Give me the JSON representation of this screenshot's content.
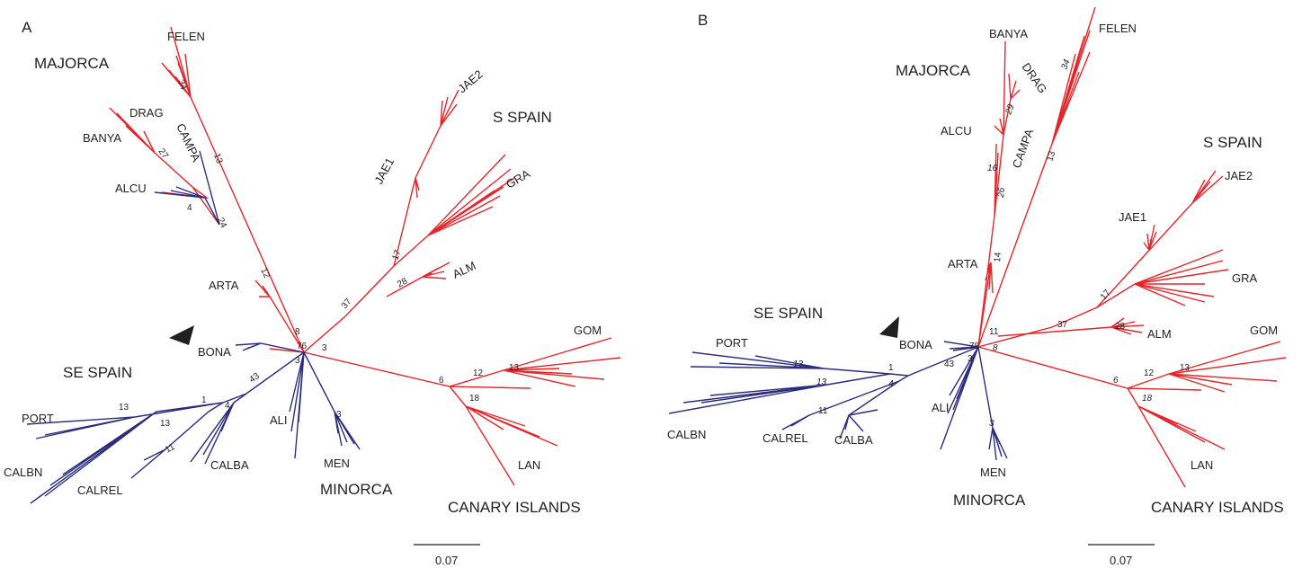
{
  "panels": [
    {
      "id": "A",
      "panel_label": "A",
      "regions": {
        "majorca": "MAJORCA",
        "s_spain": "S SPAIN",
        "se_spain": "SE SPAIN",
        "minorca": "MINORCA",
        "canary": "CANARY ISLANDS"
      },
      "taxa": {
        "felen": "FELEN",
        "drag": "DRAG",
        "banya": "BANYA",
        "campa": "CAMPA",
        "alcu": "ALCU",
        "arta": "ARTA",
        "bona": "BONA",
        "jae2": "JAE2",
        "jae1": "JAE1",
        "gra": "GRA",
        "alm": "ALM",
        "gom": "GOM",
        "lan": "LAN",
        "port": "PORT",
        "calbn": "CALBN",
        "calrel": "CALREL",
        "calba": "CALBA",
        "ali": "ALI",
        "men": "MEN"
      },
      "support": [
        "34",
        "13",
        "27",
        "24",
        "4",
        "12",
        "8",
        "76",
        "3",
        "3",
        "37",
        "17",
        "28",
        "6",
        "12",
        "13",
        "18",
        "43",
        "1",
        "4",
        "13",
        "13",
        "11",
        "3"
      ],
      "scale_bar": "0.07"
    },
    {
      "id": "B",
      "panel_label": "B",
      "regions": {
        "majorca": "MAJORCA",
        "s_spain": "S SPAIN",
        "se_spain": "SE SPAIN",
        "minorca": "MINORCA",
        "canary": "CANARY ISLANDS"
      },
      "taxa": {
        "felen": "FELEN",
        "drag": "DRAG",
        "banya": "BANYA",
        "campa": "CAMPA",
        "alcu": "ALCU",
        "arta": "ARTA",
        "bona": "BONA",
        "jae2": "JAE2",
        "jae1": "JAE1",
        "gra": "GRA",
        "alm": "ALM",
        "gom": "GOM",
        "lan": "LAN",
        "port": "PORT",
        "calbn": "CALBN",
        "calrel": "CALREL",
        "calba": "CALBA",
        "ali": "ALI",
        "men": "MEN"
      },
      "support": [
        "34",
        "29",
        "16",
        "26",
        "13",
        "14",
        "11",
        "78",
        "8",
        "37",
        "17",
        "28",
        "6",
        "12",
        "13",
        "18",
        "43",
        "3",
        "1",
        "13",
        "13",
        "4",
        "11",
        "3"
      ],
      "scale_bar": "0.07"
    }
  ],
  "colors": {
    "red_clade": "#e3262b",
    "blue_clade": "#2a2c7c",
    "arrow": "#231f20"
  }
}
